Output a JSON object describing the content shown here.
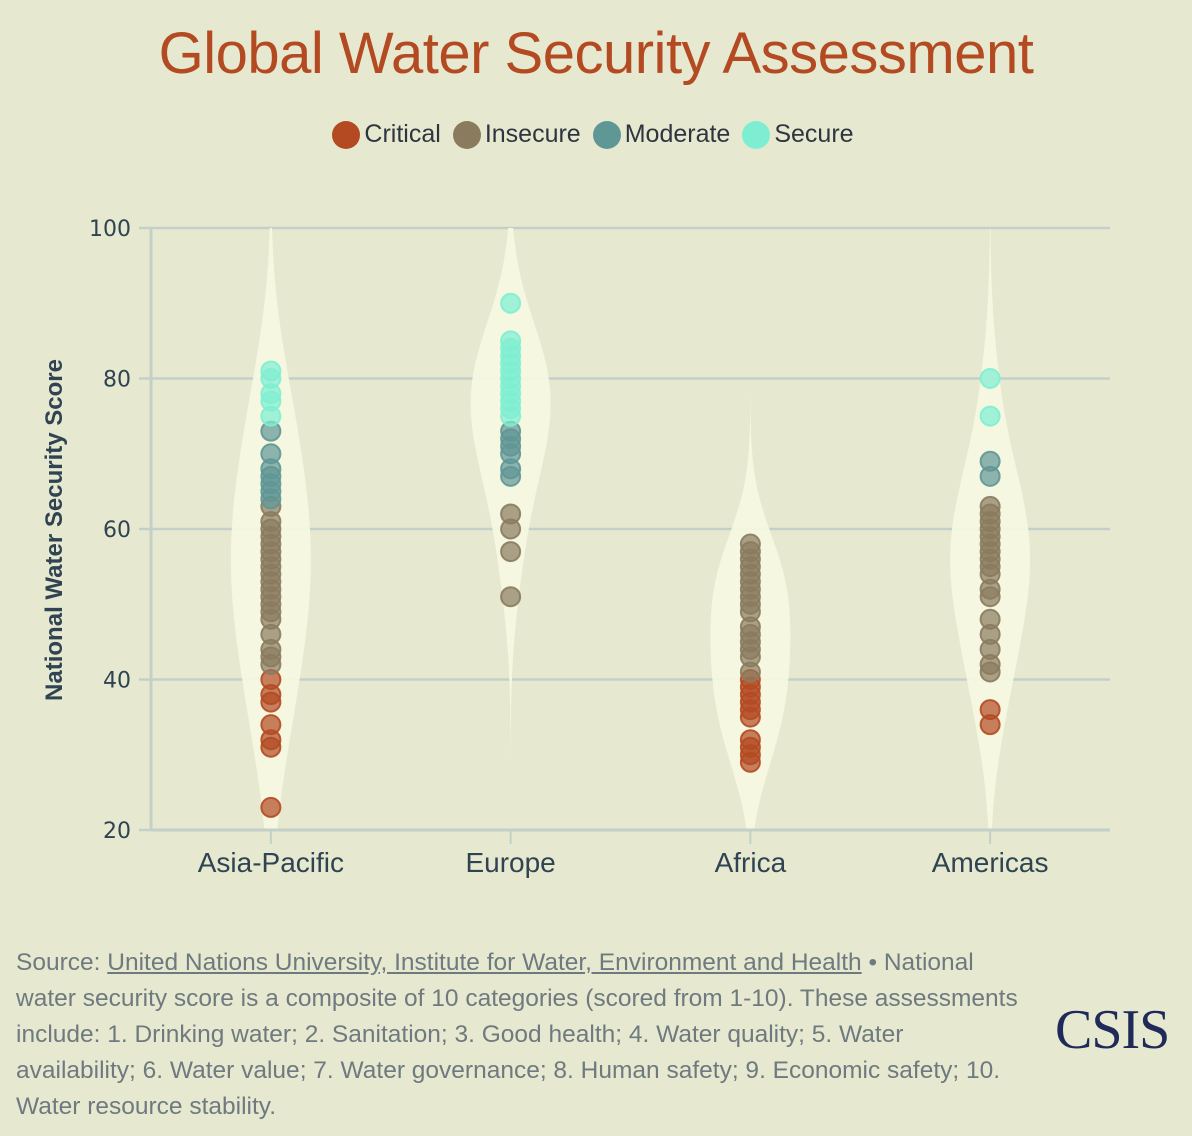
{
  "chart_data": {
    "type": "scatter",
    "subtype": "violin-strip",
    "title": "Global Water Security Assessment",
    "xlabel": "",
    "ylabel": "National Water Security Score",
    "ylim": [
      20,
      100
    ],
    "yticks": [
      20,
      40,
      60,
      80,
      100
    ],
    "grid": true,
    "legend_position": "top-center",
    "categories": [
      "Asia-Pacific",
      "Europe",
      "Africa",
      "Americas"
    ],
    "legend": [
      {
        "name": "Critical",
        "color": "#b34a22"
      },
      {
        "name": "Insecure",
        "color": "#8a7b5e"
      },
      {
        "name": "Moderate",
        "color": "#5f9696"
      },
      {
        "name": "Secure",
        "color": "#7eeed2"
      }
    ],
    "series": [
      {
        "name": "Critical",
        "points": {
          "Asia-Pacific": [
            40,
            38,
            37,
            34,
            32,
            31,
            23
          ],
          "Europe": [],
          "Africa": [
            40,
            39,
            38,
            37,
            36,
            35,
            32,
            31,
            30,
            29
          ],
          "Americas": [
            36,
            34
          ]
        }
      },
      {
        "name": "Insecure",
        "points": {
          "Asia-Pacific": [
            63,
            61,
            60,
            59,
            58,
            57,
            56,
            55,
            54,
            53,
            52,
            51,
            50,
            49,
            48,
            46,
            44,
            43,
            42
          ],
          "Europe": [
            62,
            60,
            57,
            51
          ],
          "Africa": [
            58,
            57,
            56,
            55,
            54,
            53,
            52,
            51,
            50,
            49,
            47,
            46,
            45,
            44,
            43,
            41
          ],
          "Americas": [
            63,
            62,
            61,
            60,
            59,
            58,
            57,
            56,
            55,
            54,
            52,
            51,
            48,
            46,
            44,
            42,
            41
          ]
        }
      },
      {
        "name": "Moderate",
        "points": {
          "Asia-Pacific": [
            73,
            70,
            68,
            67,
            66,
            65,
            64
          ],
          "Europe": [
            73,
            72,
            71,
            70,
            68,
            67
          ],
          "Africa": [],
          "Americas": [
            69,
            67
          ]
        }
      },
      {
        "name": "Secure",
        "points": {
          "Asia-Pacific": [
            81,
            80,
            78,
            77,
            75
          ],
          "Europe": [
            90,
            85,
            84,
            83,
            82,
            81,
            80,
            79,
            78,
            77,
            76,
            75
          ],
          "Africa": [],
          "Americas": [
            80,
            75
          ]
        }
      }
    ]
  },
  "footer": {
    "source_prefix": "Source: ",
    "source_link": "United Nations University, Institute for Water, Environment and Health",
    "bullet": " • ",
    "note": "National water security score is a composite of 10 categories (scored from 1-10). These assessments include: 1. Drinking water; 2. Sanitation; 3. Good health; 4. Water quality; 5. Water availability; 6. Water value; 7. Water governance; 8. Human safety; 9. Economic safety; 10. Water resource stability."
  },
  "logo": "CSIS"
}
